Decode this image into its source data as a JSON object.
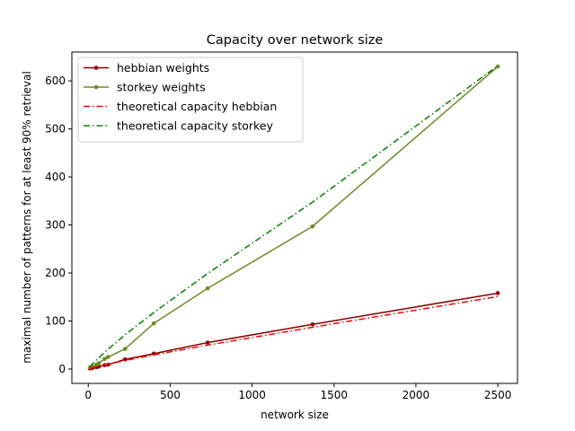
{
  "chart_data": {
    "type": "line",
    "title": "Capacity over network size",
    "xlabel": "network size",
    "ylabel": "maximal number of patterns for at least 90% retrieval",
    "xlim": [
      -100,
      2620
    ],
    "ylim": [
      -30,
      660
    ],
    "xticks": [
      0,
      500,
      1000,
      1500,
      2000,
      2500
    ],
    "yticks": [
      0,
      100,
      200,
      300,
      400,
      500,
      600
    ],
    "grid": false,
    "legend_position": "top-left",
    "series": [
      {
        "name": "hebbian weights",
        "color": "#8b0000",
        "style": "solid",
        "marker": "dot",
        "x": [
          10,
          25,
          49,
          64,
          100,
          121,
          225,
          400,
          729,
          1369,
          2500
        ],
        "y": [
          1,
          2,
          4,
          5,
          8,
          9,
          20,
          32,
          55,
          93,
          158
        ]
      },
      {
        "name": "storkey weights",
        "color": "#6b8e23",
        "style": "solid",
        "marker": "dot",
        "x": [
          10,
          25,
          49,
          64,
          100,
          121,
          225,
          400,
          729,
          1369,
          2500
        ],
        "y": [
          3,
          5,
          9,
          12,
          21,
          25,
          42,
          95,
          168,
          297,
          630
        ]
      },
      {
        "name": "theoretical capacity hebbian",
        "color": "#ff0000",
        "style": "dashdot",
        "marker": "none",
        "x": [
          10,
          25,
          49,
          64,
          100,
          121,
          225,
          400,
          729,
          1369,
          2500
        ],
        "y": [
          1.1,
          2.6,
          4.6,
          5.8,
          8.7,
          10.3,
          17.8,
          29.4,
          49.8,
          86.9,
          150.9
        ]
      },
      {
        "name": "theoretical capacity storkey",
        "color": "#008000",
        "style": "dashdot",
        "marker": "none",
        "x": [
          10,
          25,
          49,
          64,
          100,
          121,
          225,
          400,
          729,
          1369,
          2500
        ],
        "y": [
          4.3,
          10.4,
          18.4,
          23.3,
          34.7,
          41.1,
          71.3,
          117.5,
          199.0,
          347.5,
          631.6
        ]
      }
    ]
  }
}
